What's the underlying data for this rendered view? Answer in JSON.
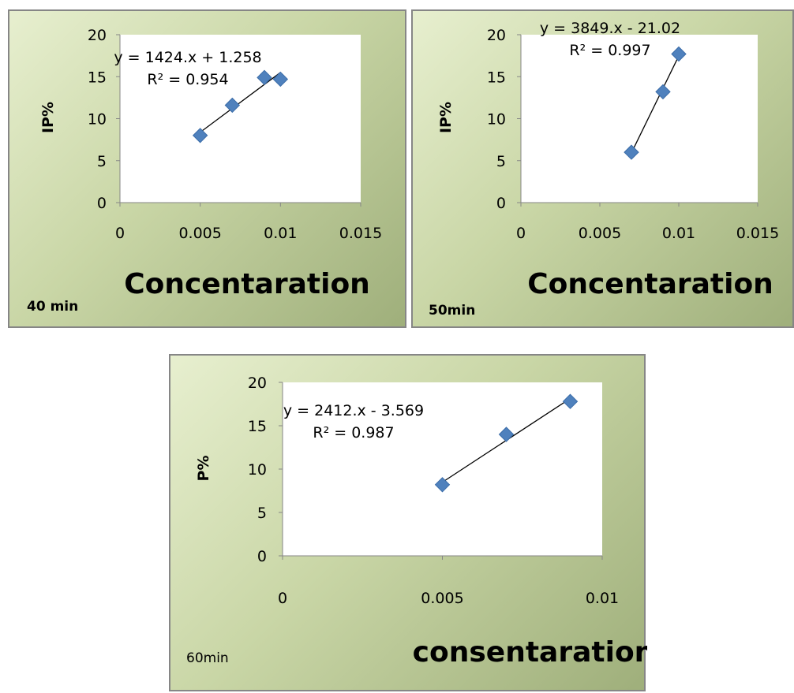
{
  "chart_data": [
    {
      "type": "scatter",
      "panel_label": "40 min",
      "ylabel": "IP%",
      "xlabel": "Concentaration",
      "xlim": [
        0,
        0.015
      ],
      "ylim": [
        0,
        20
      ],
      "x_ticks": [
        "0",
        "0.005",
        "0.01",
        "0.015"
      ],
      "y_ticks": [
        "0",
        "5",
        "10",
        "15",
        "20"
      ],
      "series": [
        {
          "x": [
            0.005,
            0.007,
            0.009,
            0.01
          ],
          "y": [
            8.0,
            11.6,
            14.9,
            14.7
          ],
          "color": "#4f81bd"
        }
      ],
      "trendline": {
        "x": [
          0.005,
          0.01
        ],
        "y": [
          8.38,
          15.5
        ],
        "equation": "y = 1424.x + 1.258",
        "r2": "R² = 0.954"
      }
    },
    {
      "type": "scatter",
      "panel_label": "50min",
      "ylabel": "IP%",
      "xlabel": "Concentaration",
      "xlim": [
        0,
        0.015
      ],
      "ylim": [
        0,
        20
      ],
      "x_ticks": [
        "0",
        "0.005",
        "0.01",
        "0.015"
      ],
      "y_ticks": [
        "0",
        "5",
        "10",
        "15",
        "20"
      ],
      "series": [
        {
          "x": [
            0.007,
            0.009,
            0.01
          ],
          "y": [
            6.0,
            13.2,
            17.7
          ],
          "color": "#4f81bd"
        }
      ],
      "trendline": {
        "x": [
          0.007,
          0.01
        ],
        "y": [
          5.92,
          17.47
        ],
        "equation": "y = 3849.x - 21.02",
        "r2": "R² = 0.997"
      }
    },
    {
      "type": "scatter",
      "panel_label": "60min",
      "ylabel": "P%",
      "xlabel": "consentaration",
      "xlim": [
        0,
        0.01
      ],
      "ylim": [
        0,
        20
      ],
      "x_ticks": [
        "0",
        "0.005",
        "0.01"
      ],
      "y_ticks": [
        "0",
        "5",
        "10",
        "15",
        "20"
      ],
      "series": [
        {
          "x": [
            0.005,
            0.007,
            0.009
          ],
          "y": [
            8.2,
            14.0,
            17.8
          ],
          "color": "#4f81bd"
        }
      ],
      "trendline": {
        "x": [
          0.005,
          0.009
        ],
        "y": [
          8.49,
          18.14
        ],
        "equation": "y = 2412.x - 3.569",
        "r2": "R² = 0.987"
      }
    }
  ]
}
